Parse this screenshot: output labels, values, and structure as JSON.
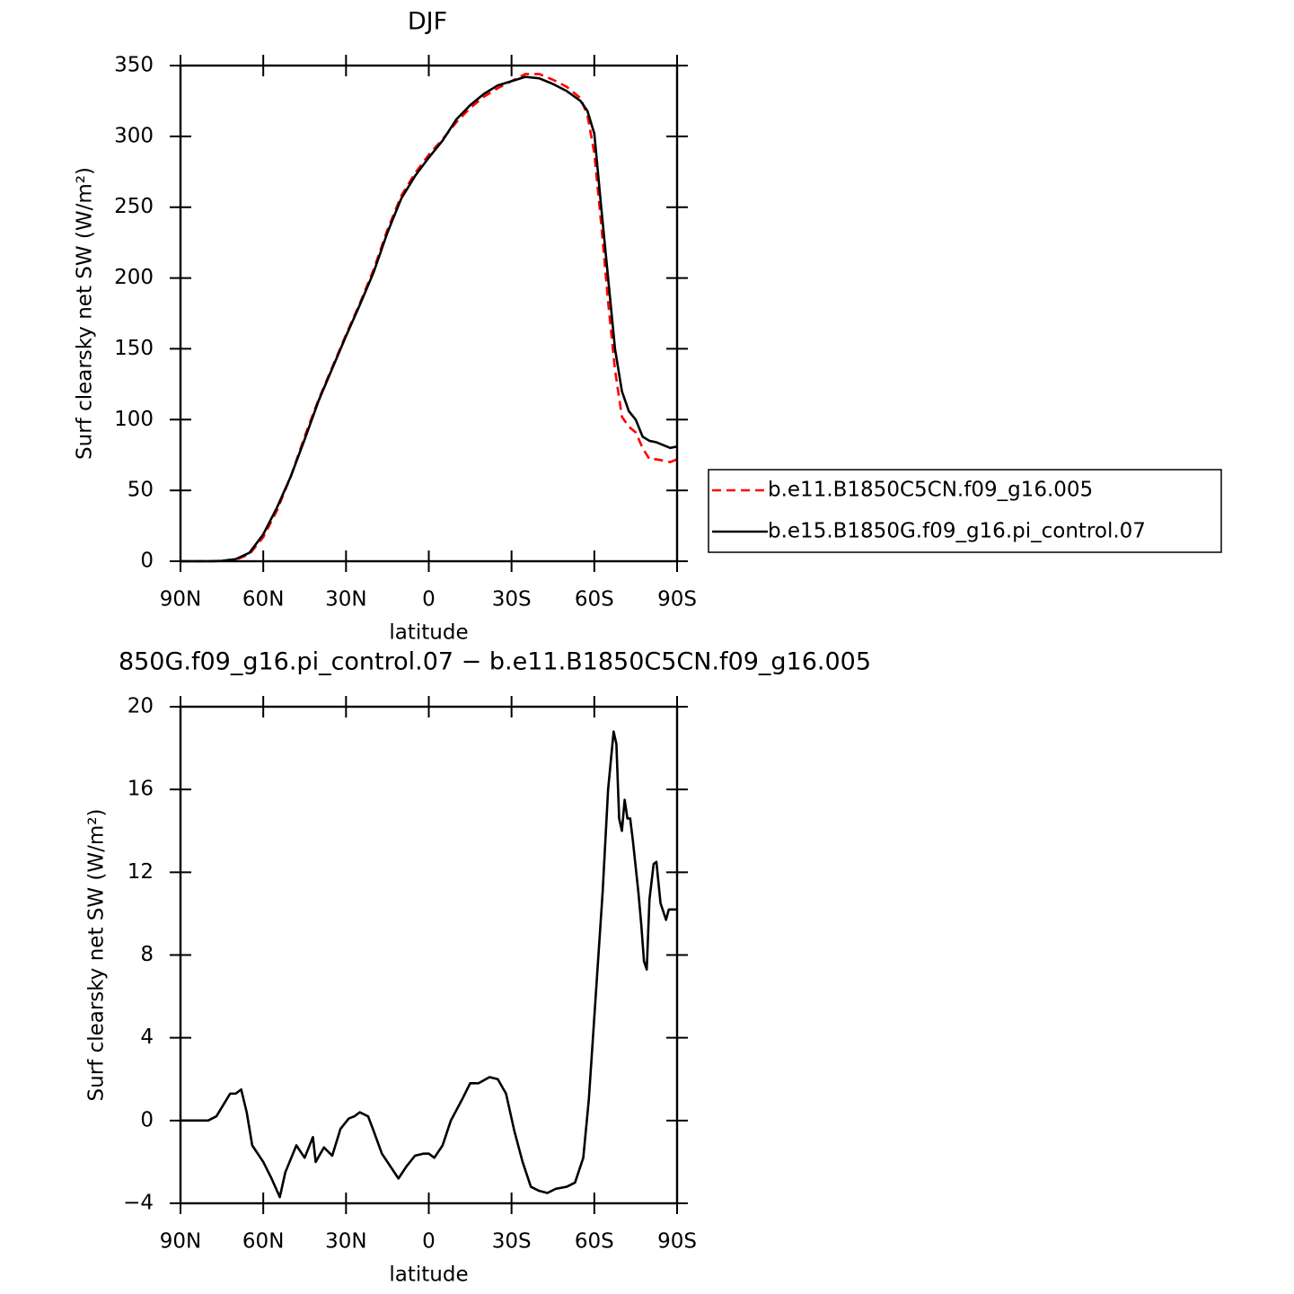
{
  "chart_data": [
    {
      "type": "line",
      "title": "DJF",
      "xlabel": "latitude",
      "ylabel": "Surf clearsky net SW (W/m²)",
      "x": [
        90,
        85,
        80,
        75,
        70,
        65,
        60,
        55,
        50,
        45,
        40,
        35,
        30,
        25,
        20,
        15,
        10,
        5,
        0,
        -5,
        -10,
        -15,
        -20,
        -25,
        -30,
        -35,
        -40,
        -45,
        -50,
        -55,
        -57.5,
        -60,
        -62.5,
        -65,
        -67.5,
        -70,
        -72.5,
        -75,
        -77.5,
        -80,
        -82.5,
        -85,
        -87.5,
        -90
      ],
      "series": [
        {
          "name": "b.e11.B1850C5CN.f09_g16.005",
          "color": "#ff0000",
          "dashed": true,
          "values": [
            0,
            0,
            0,
            0.2,
            1,
            5,
            17,
            36,
            60,
            88,
            114,
            137,
            160,
            182,
            206,
            234,
            258,
            274,
            287,
            298,
            310,
            320,
            328,
            334,
            339,
            344,
            344,
            340,
            335,
            327,
            315,
            288,
            238,
            183,
            135,
            102,
            95,
            91,
            80,
            72,
            72,
            71,
            70,
            72
          ]
        },
        {
          "name": "b.e15.B1850G.f09_g16.pi_control.07",
          "color": "#000000",
          "dashed": false,
          "values": [
            0,
            0,
            0,
            0.3,
            1.5,
            6,
            19,
            38,
            60,
            86,
            113,
            136,
            159,
            181,
            204,
            232,
            256,
            272,
            285,
            297,
            312,
            322,
            330,
            336,
            339,
            342,
            341,
            337,
            332,
            325,
            318,
            302,
            250,
            200,
            150,
            120,
            106,
            100,
            88,
            85,
            84,
            82,
            80,
            81
          ]
        }
      ],
      "xlim": [
        90,
        -90
      ],
      "xticks": [
        {
          "value": 90,
          "label": "90N"
        },
        {
          "value": 60,
          "label": "60N"
        },
        {
          "value": 30,
          "label": "30N"
        },
        0,
        {
          "value": -30,
          "label": "30S"
        },
        {
          "value": -60,
          "label": "60S"
        },
        {
          "value": -90,
          "label": "90S"
        }
      ],
      "ylim": [
        0,
        350
      ],
      "yticks": [
        0,
        50,
        100,
        150,
        200,
        250,
        300,
        350
      ],
      "legend_position": "right"
    },
    {
      "type": "line",
      "title": "850G.f09_g16.pi_control.07 − b.e11.B1850C5CN.f09_g16.005",
      "xlabel": "latitude",
      "ylabel": "Surf clearsky net SW (W/m²)",
      "x": [
        90,
        85,
        80,
        77,
        72,
        70,
        68,
        66,
        64,
        60,
        57,
        54,
        52,
        48,
        45,
        42,
        41,
        38,
        35,
        32,
        29,
        27,
        25,
        22,
        20,
        17,
        14,
        11,
        8,
        5,
        2,
        0,
        -2,
        -5,
        -8,
        -12,
        -15,
        -18,
        -22,
        -25,
        -28,
        -31,
        -34,
        -37,
        -40,
        -43,
        -46,
        -50,
        -53,
        -56,
        -58,
        -60,
        -62,
        -63,
        -65,
        -67,
        -68,
        -69,
        -70,
        -71,
        -72,
        -73,
        -74,
        -76,
        -77,
        -78,
        -79,
        -80,
        -81.5,
        -82.5,
        -84,
        -86,
        -87,
        -90
      ],
      "series": [
        {
          "color": "#000000",
          "dashed": false,
          "values": [
            0,
            0,
            0,
            0.2,
            1.3,
            1.3,
            1.5,
            0.4,
            -1.2,
            -2,
            -2.8,
            -3.7,
            -2.5,
            -1.2,
            -1.8,
            -0.8,
            -2,
            -1.3,
            -1.7,
            -0.4,
            0.1,
            0.2,
            0.4,
            0.2,
            -0.5,
            -1.6,
            -2.2,
            -2.8,
            -2.2,
            -1.7,
            -1.6,
            -1.6,
            -1.8,
            -1.2,
            0,
            1,
            1.8,
            1.8,
            2.1,
            2,
            1.3,
            -0.5,
            -2,
            -3.2,
            -3.4,
            -3.5,
            -3.3,
            -3.2,
            -3,
            -1.8,
            1,
            5,
            9,
            11,
            16,
            18.8,
            18.2,
            14.6,
            14,
            15.5,
            14.6,
            14.6,
            13.5,
            11,
            9.5,
            7.7,
            7.3,
            10.7,
            12.4,
            12.5,
            10.5,
            9.7,
            10.2,
            10.2
          ]
        }
      ],
      "xlim": [
        90,
        -90
      ],
      "xticks": [
        {
          "value": 90,
          "label": "90N"
        },
        {
          "value": 60,
          "label": "60N"
        },
        {
          "value": 30,
          "label": "30N"
        },
        0,
        {
          "value": -30,
          "label": "30S"
        },
        {
          "value": -60,
          "label": "60S"
        },
        {
          "value": -90,
          "label": "90S"
        }
      ],
      "ylim": [
        -4,
        20
      ],
      "yticks": [
        {
          "value": -4,
          "label": "−4"
        },
        0,
        4,
        8,
        12,
        16,
        20
      ]
    }
  ]
}
